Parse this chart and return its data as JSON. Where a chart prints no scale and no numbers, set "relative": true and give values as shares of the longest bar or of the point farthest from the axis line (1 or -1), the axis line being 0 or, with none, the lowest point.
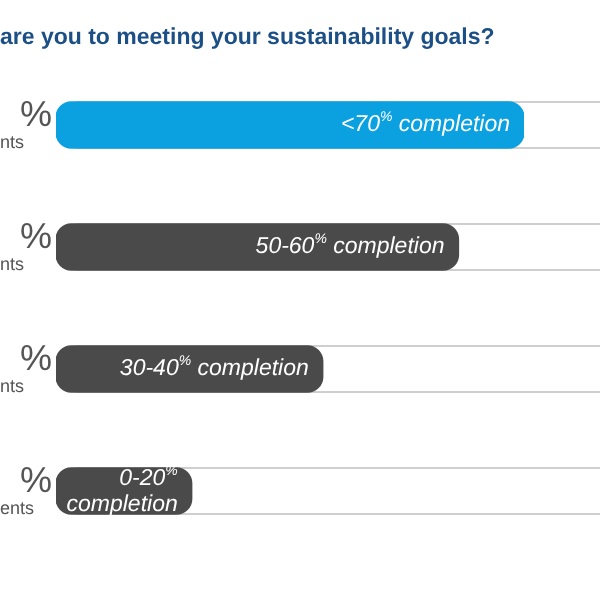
{
  "chart_data": {
    "type": "bar",
    "orientation": "horizontal",
    "relative": true,
    "title": "are you to meeting your sustainability goals?",
    "categories": [
      "<70$^{%}$ completion",
      "50-60$^{%}$ completion",
      "30-40$^{%}$ completion",
      "0-20$^{%}$ completion"
    ],
    "values": [
      1,
      0.86,
      0.57,
      0.29
    ],
    "colors": [
      "#0ba0e0",
      "#4a4a4a",
      "#4a4a4a",
      "#4a4a4a"
    ],
    "annotations": [
      "%",
      "nts",
      "%",
      "nts",
      "%",
      "nts",
      "%",
      "ents"
    ]
  }
}
